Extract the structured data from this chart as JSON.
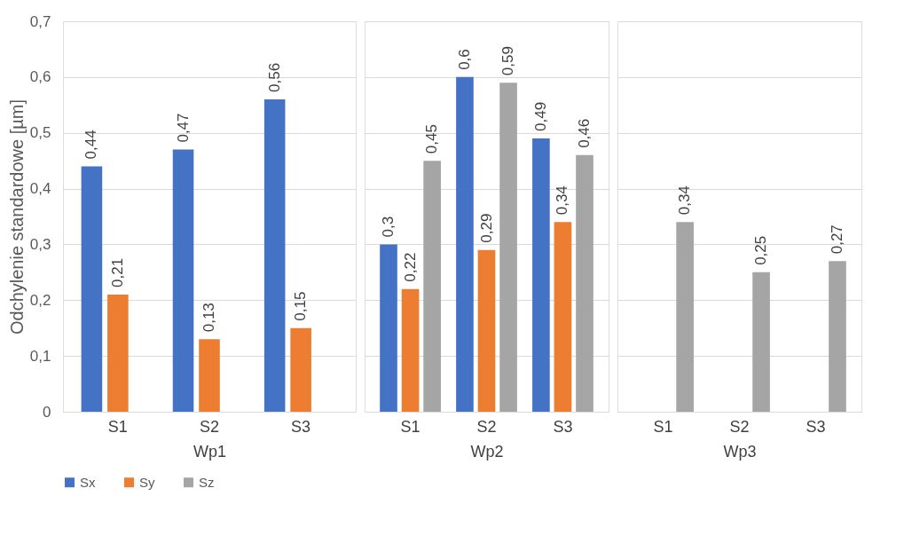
{
  "chart_data": [
    {
      "type": "bar",
      "categories": [
        "S1",
        "S2",
        "S3"
      ],
      "xlabel": "Wp1",
      "ylabel": "Odchylenie standardowe [µm]",
      "ylim": [
        0,
        0.7
      ],
      "yticks": [
        0,
        {
          "value": 0.1,
          "label": "0,1"
        },
        {
          "value": 0.2,
          "label": "0,2"
        },
        {
          "value": 0.3,
          "label": "0,3"
        },
        {
          "value": 0.4,
          "label": "0,4"
        },
        {
          "value": 0.5,
          "label": "0,5"
        },
        {
          "value": 0.6,
          "label": "0,6"
        },
        {
          "value": 0.7,
          "label": "0,7"
        }
      ],
      "grid": "y",
      "legend": "bottom left",
      "series": [
        {
          "name": "Sx",
          "color": "#4472c4",
          "values": [
            0.44,
            0.47,
            0.56
          ],
          "value_labels": [
            "0,44",
            "0,47",
            "0,56"
          ]
        },
        {
          "name": "Sy",
          "color": "#ed7d31",
          "values": [
            0.21,
            0.13,
            0.15
          ],
          "value_labels": [
            "0,21",
            "0,13",
            "0,15"
          ]
        },
        {
          "name": "Sz",
          "color": "#a5a5a5",
          "values": [
            null,
            null,
            null
          ]
        }
      ]
    },
    {
      "type": "bar",
      "categories": [
        "S1",
        "S2",
        "S3"
      ],
      "xlabel": "Wp2",
      "ylim": [
        0,
        0.7
      ],
      "yticks": [
        0,
        0.1,
        0.2,
        0.3,
        0.4,
        0.5,
        0.6,
        0.7
      ],
      "grid": "y",
      "tick_labels": "x",
      "series": [
        {
          "color": "#4472c4",
          "values": [
            0.3,
            0.6,
            0.49
          ],
          "value_labels": [
            "0,3",
            "0,6",
            "0,49"
          ]
        },
        {
          "color": "#ed7d31",
          "values": [
            0.22,
            0.29,
            0.34
          ],
          "value_labels": [
            "0,22",
            "0,29",
            "0,34"
          ]
        },
        {
          "color": "#a5a5a5",
          "values": [
            0.45,
            0.59,
            0.46
          ],
          "value_labels": [
            "0,45",
            "0,59",
            "0,46"
          ]
        }
      ]
    },
    {
      "type": "bar",
      "categories": [
        "S1",
        "S2",
        "S3"
      ],
      "xlabel": "Wp3",
      "ylim": [
        0,
        0.7
      ],
      "yticks": [
        0,
        0.1,
        0.2,
        0.3,
        0.4,
        0.5,
        0.6,
        0.7
      ],
      "grid": "y",
      "tick_labels": "x",
      "series": [
        {
          "color": "#4472c4",
          "values": [
            null,
            null,
            null
          ]
        },
        {
          "color": "#ed7d31",
          "values": [
            null,
            null,
            null
          ]
        },
        {
          "color": "#a5a5a5",
          "values": [
            0.34,
            0.25,
            0.27
          ],
          "value_labels": [
            "0,34",
            "0,25",
            "0,27"
          ]
        }
      ]
    }
  ]
}
